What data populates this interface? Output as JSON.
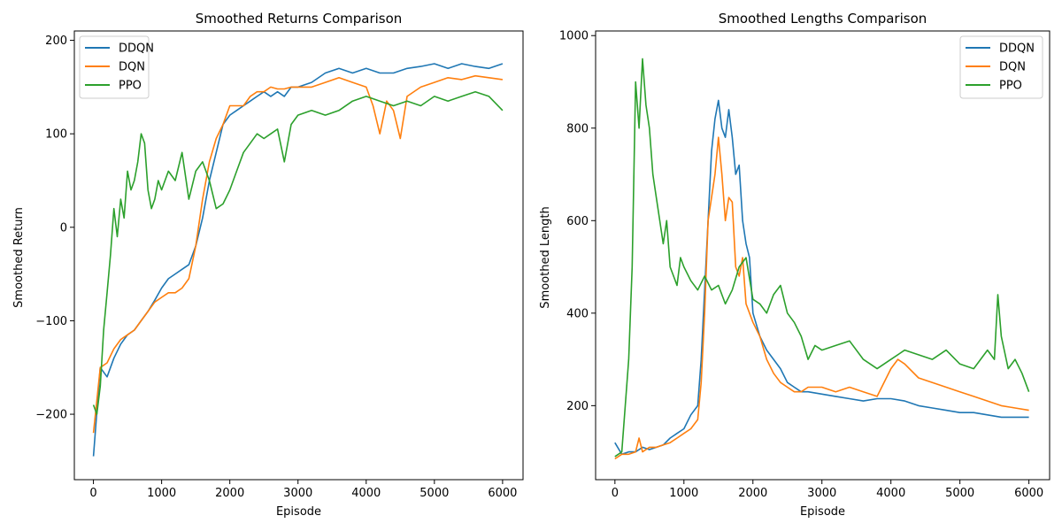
{
  "colors": {
    "DDQN": "#1f77b4",
    "DQN": "#ff7f0e",
    "PPO": "#2ca02c"
  },
  "chart_data": [
    {
      "type": "line",
      "title": "Smoothed Returns Comparison",
      "xlabel": "Episode",
      "ylabel": "Smoothed Return",
      "xlim": [
        -280,
        6300
      ],
      "ylim": [
        -270,
        210
      ],
      "xticks": [
        0,
        1000,
        2000,
        3000,
        4000,
        5000,
        6000
      ],
      "xtick_labels": [
        "0",
        "1000",
        "2000",
        "3000",
        "4000",
        "5000",
        "6000"
      ],
      "yticks": [
        -200,
        -100,
        0,
        100,
        200
      ],
      "ytick_labels": [
        "−200",
        "−100",
        "0",
        "100",
        "200"
      ],
      "legend": "top-left",
      "series": [
        {
          "name": "DDQN",
          "x": [
            0,
            100,
            200,
            300,
            400,
            500,
            600,
            700,
            800,
            900,
            1000,
            1100,
            1200,
            1300,
            1400,
            1500,
            1600,
            1700,
            1800,
            1900,
            2000,
            2100,
            2200,
            2300,
            2400,
            2500,
            2600,
            2700,
            2800,
            2900,
            3000,
            3200,
            3400,
            3600,
            3800,
            4000,
            4200,
            4400,
            4600,
            4800,
            5000,
            5200,
            5400,
            5600,
            5800,
            6000
          ],
          "y": [
            -245,
            -150,
            -160,
            -140,
            -125,
            -115,
            -110,
            -100,
            -90,
            -78,
            -65,
            -55,
            -50,
            -45,
            -40,
            -20,
            10,
            50,
            80,
            110,
            120,
            125,
            130,
            135,
            140,
            145,
            140,
            145,
            140,
            150,
            150,
            155,
            165,
            170,
            165,
            170,
            165,
            165,
            170,
            172,
            175,
            170,
            175,
            172,
            170,
            175
          ]
        },
        {
          "name": "DQN",
          "x": [
            0,
            100,
            200,
            300,
            400,
            500,
            600,
            700,
            800,
            900,
            1000,
            1100,
            1200,
            1300,
            1400,
            1500,
            1600,
            1700,
            1800,
            1900,
            2000,
            2100,
            2200,
            2300,
            2400,
            2500,
            2600,
            2700,
            2800,
            2900,
            3000,
            3200,
            3400,
            3600,
            3800,
            4000,
            4100,
            4200,
            4300,
            4400,
            4500,
            4600,
            4800,
            5000,
            5200,
            5400,
            5600,
            5800,
            6000
          ],
          "y": [
            -220,
            -150,
            -145,
            -130,
            -120,
            -115,
            -110,
            -100,
            -90,
            -80,
            -75,
            -70,
            -70,
            -65,
            -55,
            -20,
            30,
            70,
            95,
            110,
            130,
            130,
            130,
            140,
            145,
            145,
            150,
            148,
            148,
            150,
            150,
            150,
            155,
            160,
            155,
            150,
            130,
            100,
            135,
            125,
            95,
            140,
            150,
            155,
            160,
            158,
            162,
            160,
            158
          ]
        },
        {
          "name": "PPO",
          "x": [
            0,
            50,
            100,
            150,
            200,
            250,
            300,
            350,
            400,
            450,
            500,
            550,
            600,
            650,
            700,
            750,
            800,
            850,
            900,
            950,
            1000,
            1100,
            1200,
            1300,
            1400,
            1500,
            1600,
            1700,
            1800,
            1900,
            2000,
            2100,
            2200,
            2300,
            2400,
            2500,
            2600,
            2700,
            2800,
            2900,
            3000,
            3200,
            3400,
            3600,
            3800,
            4000,
            4200,
            4400,
            4600,
            4800,
            5000,
            5200,
            5400,
            5600,
            5800,
            6000
          ],
          "y": [
            -190,
            -200,
            -170,
            -110,
            -70,
            -30,
            20,
            -10,
            30,
            10,
            60,
            40,
            50,
            70,
            100,
            90,
            40,
            20,
            30,
            50,
            40,
            60,
            50,
            80,
            30,
            60,
            70,
            50,
            20,
            25,
            40,
            60,
            80,
            90,
            100,
            95,
            100,
            105,
            70,
            110,
            120,
            125,
            120,
            125,
            135,
            140,
            135,
            130,
            135,
            130,
            140,
            135,
            140,
            145,
            140,
            125
          ]
        }
      ]
    },
    {
      "type": "line",
      "title": "Smoothed Lengths Comparison",
      "xlabel": "Episode",
      "ylabel": "Smoothed Length",
      "xlim": [
        -280,
        6300
      ],
      "ylim": [
        40,
        1010
      ],
      "xticks": [
        0,
        1000,
        2000,
        3000,
        4000,
        5000,
        6000
      ],
      "xtick_labels": [
        "0",
        "1000",
        "2000",
        "3000",
        "4000",
        "5000",
        "6000"
      ],
      "yticks": [
        200,
        400,
        600,
        800,
        1000
      ],
      "ytick_labels": [
        "200",
        "400",
        "600",
        "800",
        "1000"
      ],
      "legend": "top-right",
      "series": [
        {
          "name": "DDQN",
          "x": [
            0,
            100,
            200,
            300,
            400,
            500,
            600,
            700,
            800,
            900,
            1000,
            1100,
            1200,
            1250,
            1300,
            1350,
            1400,
            1450,
            1500,
            1550,
            1600,
            1650,
            1700,
            1750,
            1800,
            1850,
            1900,
            1950,
            2000,
            2100,
            2200,
            2300,
            2400,
            2500,
            2600,
            2700,
            2800,
            3000,
            3200,
            3400,
            3600,
            3800,
            4000,
            4200,
            4400,
            4600,
            4800,
            5000,
            5200,
            5400,
            5600,
            5800,
            6000
          ],
          "y": [
            120,
            95,
            100,
            100,
            110,
            105,
            110,
            115,
            130,
            140,
            150,
            180,
            200,
            300,
            450,
            600,
            750,
            820,
            860,
            800,
            780,
            840,
            780,
            700,
            720,
            600,
            550,
            520,
            400,
            350,
            320,
            300,
            280,
            250,
            240,
            230,
            230,
            225,
            220,
            215,
            210,
            215,
            215,
            210,
            200,
            195,
            190,
            185,
            185,
            180,
            175,
            175,
            175
          ]
        },
        {
          "name": "DQN",
          "x": [
            0,
            100,
            200,
            300,
            350,
            400,
            450,
            500,
            600,
            700,
            800,
            900,
            1000,
            1100,
            1200,
            1250,
            1300,
            1350,
            1400,
            1450,
            1500,
            1550,
            1600,
            1650,
            1700,
            1750,
            1800,
            1850,
            1900,
            1950,
            2000,
            2100,
            2200,
            2300,
            2400,
            2500,
            2600,
            2700,
            2800,
            3000,
            3200,
            3400,
            3600,
            3800,
            4000,
            4100,
            4200,
            4400,
            4600,
            4800,
            5000,
            5200,
            5400,
            5600,
            5800,
            6000
          ],
          "y": [
            85,
            95,
            95,
            100,
            130,
            100,
            105,
            110,
            110,
            115,
            120,
            130,
            140,
            150,
            170,
            250,
            400,
            600,
            650,
            700,
            780,
            700,
            600,
            650,
            640,
            500,
            480,
            520,
            420,
            400,
            380,
            350,
            300,
            270,
            250,
            240,
            230,
            230,
            240,
            240,
            230,
            240,
            230,
            220,
            280,
            300,
            290,
            260,
            250,
            240,
            230,
            220,
            210,
            200,
            195,
            190
          ]
        },
        {
          "name": "PPO",
          "x": [
            0,
            50,
            100,
            150,
            200,
            250,
            300,
            350,
            400,
            450,
            500,
            550,
            600,
            650,
            700,
            750,
            800,
            850,
            900,
            950,
            1000,
            1100,
            1200,
            1300,
            1400,
            1500,
            1600,
            1700,
            1800,
            1900,
            2000,
            2100,
            2200,
            2300,
            2400,
            2500,
            2600,
            2700,
            2800,
            2900,
            3000,
            3200,
            3400,
            3600,
            3800,
            4000,
            4200,
            4400,
            4600,
            4800,
            5000,
            5200,
            5400,
            5500,
            5550,
            5600,
            5700,
            5800,
            5900,
            6000
          ],
          "y": [
            90,
            95,
            100,
            200,
            300,
            500,
            900,
            800,
            950,
            850,
            800,
            700,
            650,
            600,
            550,
            600,
            500,
            480,
            460,
            520,
            500,
            470,
            450,
            480,
            450,
            460,
            420,
            450,
            500,
            520,
            430,
            420,
            400,
            440,
            460,
            400,
            380,
            350,
            300,
            330,
            320,
            330,
            340,
            300,
            280,
            300,
            320,
            310,
            300,
            320,
            290,
            280,
            320,
            300,
            440,
            350,
            280,
            300,
            270,
            230
          ]
        }
      ]
    }
  ]
}
